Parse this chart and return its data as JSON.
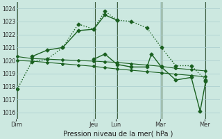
{
  "background_color": "#cce8e0",
  "grid_color": "#a8cccc",
  "line_color": "#1a6020",
  "ylim": [
    1015.5,
    1024.5
  ],
  "yticks": [
    1016,
    1017,
    1018,
    1019,
    1020,
    1021,
    1022,
    1023,
    1024
  ],
  "xlabel": "Pression niveau de la mer( hPa )",
  "day_labels": [
    "Dim",
    "Jeu",
    "Lun",
    "Mar",
    "Mer"
  ],
  "day_positions": [
    0,
    3.5,
    4.5,
    6.5,
    8.5
  ],
  "xlim": [
    0,
    9.2
  ],
  "vline_positions": [
    0.05,
    3.55,
    4.55,
    6.55,
    8.55
  ],
  "series": [
    {
      "x": [
        0.05,
        0.7,
        1.4,
        2.1,
        2.8,
        3.5,
        4.0,
        4.55,
        5.2,
        5.9,
        6.55,
        7.2,
        7.9,
        8.55
      ],
      "y": [
        1017.8,
        1019.9,
        1020.1,
        1021.0,
        1022.8,
        1022.4,
        1023.8,
        1023.1,
        1023.0,
        1022.5,
        1021.0,
        1019.6,
        1019.6,
        1018.5
      ],
      "marker": "D",
      "markersize": 2.5,
      "linewidth": 1.0,
      "linestyle": "dotted"
    },
    {
      "x": [
        0.7,
        1.4,
        2.1,
        2.8,
        3.5,
        4.0,
        4.55
      ],
      "y": [
        1020.3,
        1020.8,
        1021.0,
        1022.3,
        1022.4,
        1023.5,
        1023.1
      ],
      "marker": "D",
      "markersize": 2.5,
      "linewidth": 1.0,
      "linestyle": "solid"
    },
    {
      "x": [
        0.05,
        0.7,
        1.4,
        2.1,
        2.8,
        3.5,
        4.0,
        4.55,
        5.2,
        5.9,
        6.55,
        7.2,
        7.9,
        8.55
      ],
      "y": [
        1020.3,
        1020.15,
        1020.1,
        1020.05,
        1020.0,
        1019.95,
        1019.9,
        1019.85,
        1019.75,
        1019.65,
        1019.55,
        1019.4,
        1019.3,
        1019.2
      ],
      "marker": "D",
      "markersize": 2,
      "linewidth": 0.8,
      "linestyle": "solid"
    },
    {
      "x": [
        0.05,
        0.7,
        1.4,
        2.1,
        2.8,
        3.5,
        4.0,
        4.55,
        5.2,
        5.9,
        6.55,
        7.2,
        7.9,
        8.55
      ],
      "y": [
        1020.0,
        1019.95,
        1019.85,
        1019.75,
        1019.65,
        1019.55,
        1019.45,
        1019.35,
        1019.25,
        1019.15,
        1019.05,
        1018.95,
        1018.85,
        1018.75
      ],
      "marker": "D",
      "markersize": 2,
      "linewidth": 0.8,
      "linestyle": "solid"
    },
    {
      "x": [
        3.5,
        4.0,
        4.55,
        5.2,
        5.9,
        6.1,
        6.55,
        7.2,
        7.9,
        8.3,
        8.55
      ],
      "y": [
        1020.1,
        1020.5,
        1019.7,
        1019.5,
        1019.5,
        1020.5,
        1019.5,
        1018.5,
        1018.7,
        1016.1,
        1018.4
      ],
      "marker": "D",
      "markersize": 2.5,
      "linewidth": 1.0,
      "linestyle": "solid"
    }
  ]
}
